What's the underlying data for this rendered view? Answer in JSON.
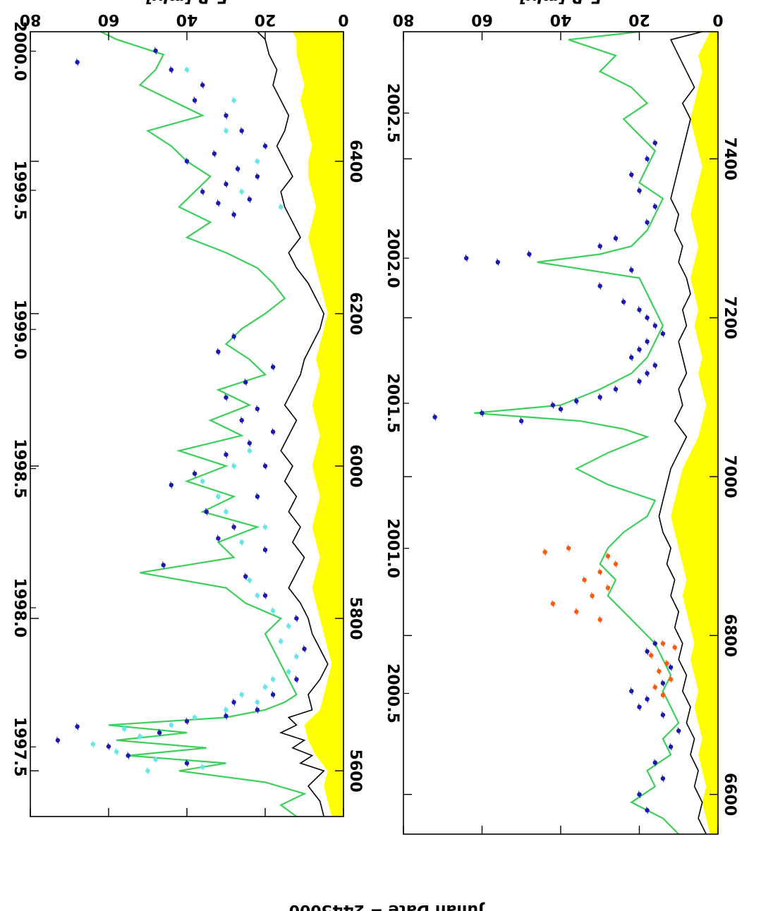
{
  "colors": {
    "fill": "#ffff00",
    "envelope": "#000000",
    "model": "#3ccf5a",
    "points_dark": "#1a1ab0",
    "points_light": "#66e6e6",
    "points_orange": "#ff5a14",
    "frame": "#000000"
  },
  "xlabel": "Julian Date − 2445000",
  "chart_data": [
    {
      "type": "scatter",
      "orientation": "rotated-180",
      "xlabel": "",
      "ylabel": "F_R [mJy]",
      "ylim": [
        0,
        80
      ],
      "yticks": [
        0,
        20,
        40,
        60,
        80
      ],
      "xlim": [
        5540,
        6570
      ],
      "xticks": [
        5600,
        5800,
        6000,
        6200,
        6400
      ],
      "years": [
        "1997.5",
        "1998.0",
        "1998.5",
        "1999.0",
        "1999.5",
        "2000.0"
      ],
      "grid": false,
      "series": [
        {
          "kind": "area",
          "x": [
            5540,
            5560,
            5580,
            5600,
            5620,
            5640,
            5660,
            5680,
            5700,
            5720,
            5740,
            5760,
            5780,
            5800,
            5820,
            5840,
            5860,
            5880,
            5900,
            5920,
            5940,
            5960,
            5980,
            6000,
            6020,
            6040,
            6060,
            6080,
            6100,
            6120,
            6140,
            6160,
            6180,
            6200,
            6220,
            6240,
            6260,
            6280,
            6300,
            6320,
            6340,
            6360,
            6380,
            6400,
            6420,
            6440,
            6460,
            6480,
            6500,
            6520,
            6540,
            6560,
            6570
          ],
          "values": [
            3,
            4,
            5,
            4,
            7,
            9,
            10,
            6,
            5,
            4,
            3,
            4,
            5,
            6,
            7,
            8,
            7,
            6,
            7,
            8,
            7,
            6,
            7,
            8,
            7,
            6,
            7,
            8,
            7,
            6,
            7,
            6,
            5,
            4,
            5,
            6,
            7,
            8,
            9,
            8,
            7,
            8,
            9,
            9,
            8,
            9,
            10,
            11,
            10,
            11,
            12,
            12,
            13
          ]
        },
        {
          "kind": "envelope",
          "x": [
            5540,
            5560,
            5580,
            5600,
            5610,
            5620,
            5630,
            5640,
            5650,
            5660,
            5670,
            5680,
            5700,
            5720,
            5740,
            5760,
            5780,
            5800,
            5820,
            5840,
            5860,
            5880,
            5900,
            5920,
            5940,
            5960,
            5980,
            6000,
            6020,
            6040,
            6060,
            6080,
            6100,
            6120,
            6140,
            6160,
            6180,
            6200,
            6220,
            6240,
            6260,
            6280,
            6300,
            6320,
            6340,
            6360,
            6380,
            6400,
            6420,
            6440,
            6460,
            6480,
            6500,
            6520,
            6540,
            6560,
            6570
          ],
          "values": [
            5,
            6,
            9,
            5,
            11,
            8,
            13,
            10,
            16,
            12,
            14,
            8,
            9,
            6,
            4,
            6,
            8,
            9,
            11,
            14,
            12,
            10,
            13,
            11,
            14,
            12,
            15,
            13,
            16,
            14,
            12,
            15,
            13,
            11,
            10,
            8,
            6,
            5,
            7,
            9,
            12,
            14,
            11,
            13,
            15,
            16,
            13,
            15,
            17,
            15,
            14,
            16,
            18,
            17,
            19,
            20,
            22
          ]
        },
        {
          "kind": "model",
          "x": [
            5540,
            5555,
            5570,
            5585,
            5600,
            5610,
            5620,
            5630,
            5640,
            5650,
            5660,
            5670,
            5680,
            5690,
            5700,
            5720,
            5740,
            5760,
            5780,
            5800,
            5820,
            5840,
            5860,
            5880,
            5900,
            5920,
            5940,
            5960,
            5980,
            6000,
            6020,
            6040,
            6060,
            6080,
            6100,
            6120,
            6140,
            6160,
            6180,
            6200,
            6220,
            6240,
            6260,
            6280,
            6300,
            6320,
            6340,
            6360,
            6380,
            6400,
            6420,
            6440,
            6460,
            6480,
            6500,
            6520,
            6540,
            6560,
            6570
          ],
          "values": [
            12,
            16,
            10,
            20,
            42,
            30,
            55,
            35,
            58,
            40,
            60,
            30,
            20,
            15,
            12,
            14,
            16,
            18,
            20,
            16,
            25,
            30,
            52,
            28,
            32,
            22,
            36,
            28,
            40,
            30,
            42,
            26,
            34,
            24,
            32,
            20,
            24,
            30,
            26,
            20,
            15,
            18,
            22,
            30,
            40,
            34,
            42,
            38,
            34,
            40,
            44,
            50,
            36,
            44,
            52,
            48,
            46,
            58,
            62
          ]
        },
        {
          "name": "",
          "kind": "points",
          "style": "dark",
          "x": [
            5610,
            5620,
            5632,
            5640,
            5650,
            5658,
            5665,
            5672,
            5680,
            5690,
            5700,
            5720,
            5760,
            5800,
            5830,
            5855,
            5870,
            5890,
            5905,
            5920,
            5940,
            5960,
            5975,
            5990,
            6000,
            6015,
            6030,
            6045,
            6060,
            6075,
            6090,
            6110,
            6130,
            6150,
            6170,
            6330,
            6345,
            6350,
            6360,
            6370,
            6380,
            6390,
            6400,
            6410,
            6420,
            6440,
            6460,
            6480,
            6500,
            6520,
            6530,
            6545
          ],
          "values": [
            40,
            55,
            60,
            73,
            47,
            68,
            40,
            30,
            22,
            28,
            18,
            12,
            10,
            12,
            20,
            25,
            46,
            20,
            32,
            28,
            35,
            22,
            44,
            38,
            20,
            30,
            24,
            18,
            26,
            22,
            30,
            25,
            18,
            32,
            28,
            28,
            32,
            24,
            36,
            30,
            22,
            27,
            40,
            33,
            20,
            26,
            30,
            38,
            36,
            44,
            68,
            48
          ]
        },
        {
          "name": "",
          "kind": "points",
          "style": "light",
          "x": [
            5600,
            5605,
            5615,
            5625,
            5635,
            5645,
            5655,
            5660,
            5670,
            5680,
            5690,
            5700,
            5710,
            5720,
            5730,
            5750,
            5770,
            5790,
            5810,
            5830,
            5850,
            5900,
            5920,
            5940,
            5960,
            5980,
            6000,
            6020,
            6340,
            6360,
            6400,
            6440,
            6480,
            6520
          ],
          "values": [
            50,
            36,
            48,
            58,
            64,
            52,
            56,
            44,
            38,
            30,
            22,
            26,
            20,
            18,
            14,
            12,
            16,
            14,
            18,
            22,
            24,
            26,
            20,
            30,
            32,
            36,
            28,
            24,
            16,
            26,
            22,
            30,
            28,
            40
          ]
        }
      ]
    },
    {
      "type": "scatter",
      "orientation": "rotated-180",
      "xlabel": "Julian Date − 2445000",
      "ylabel": "F_R [mJy]",
      "ylim": [
        0,
        80
      ],
      "yticks": [
        0,
        20,
        40,
        60,
        80
      ],
      "xlim": [
        6550,
        7560
      ],
      "xticks": [
        6600,
        6800,
        7000,
        7200,
        7400
      ],
      "years": [
        "2000.5",
        "2001.0",
        "2001.5",
        "2002.0",
        "2002.5"
      ],
      "grid": false,
      "series": [
        {
          "kind": "area",
          "x": [
            6550,
            6570,
            6590,
            6610,
            6630,
            6650,
            6670,
            6690,
            6710,
            6730,
            6750,
            6770,
            6790,
            6810,
            6830,
            6850,
            6870,
            6890,
            6910,
            6930,
            6950,
            6970,
            6990,
            7010,
            7030,
            7050,
            7070,
            7090,
            7110,
            7130,
            7150,
            7170,
            7190,
            7210,
            7230,
            7250,
            7270,
            7290,
            7310,
            7330,
            7350,
            7370,
            7390,
            7410,
            7430,
            7450,
            7470,
            7490,
            7510,
            7530,
            7550,
            7560
          ],
          "values": [
            2,
            3,
            4,
            3,
            4,
            5,
            4,
            5,
            6,
            5,
            6,
            7,
            6,
            7,
            8,
            9,
            8,
            9,
            10,
            11,
            12,
            11,
            10,
            9,
            7,
            5,
            4,
            3,
            4,
            5,
            4,
            5,
            6,
            5,
            6,
            7,
            6,
            5,
            6,
            7,
            6,
            5,
            4,
            5,
            6,
            7,
            6,
            5,
            4,
            5,
            3,
            2
          ]
        },
        {
          "kind": "envelope",
          "x": [
            6550,
            6570,
            6590,
            6610,
            6630,
            6650,
            6670,
            6690,
            6710,
            6730,
            6750,
            6770,
            6790,
            6810,
            6830,
            6850,
            6870,
            6890,
            6910,
            6930,
            6950,
            6970,
            6990,
            7010,
            7030,
            7050,
            7070,
            7090,
            7110,
            7130,
            7150,
            7170,
            7190,
            7210,
            7230,
            7250,
            7270,
            7290,
            7310,
            7330,
            7350,
            7370,
            7390,
            7410,
            7430,
            7450,
            7470,
            7490,
            7510,
            7530,
            7550,
            7560
          ],
          "values": [
            3,
            5,
            4,
            6,
            5,
            7,
            6,
            8,
            7,
            9,
            8,
            10,
            9,
            11,
            10,
            12,
            11,
            13,
            12,
            14,
            15,
            14,
            13,
            12,
            10,
            8,
            11,
            9,
            10,
            8,
            9,
            10,
            8,
            9,
            7,
            8,
            10,
            9,
            11,
            10,
            12,
            11,
            10,
            9,
            8,
            7,
            9,
            6,
            8,
            10,
            12,
            4
          ]
        },
        {
          "kind": "model",
          "x": [
            6550,
            6570,
            6590,
            6610,
            6630,
            6650,
            6670,
            6690,
            6710,
            6730,
            6750,
            6770,
            6790,
            6810,
            6830,
            6850,
            6870,
            6890,
            6910,
            6930,
            6950,
            6970,
            6990,
            7010,
            7030,
            7050,
            7060,
            7070,
            7080,
            7090,
            7110,
            7130,
            7150,
            7170,
            7190,
            7210,
            7230,
            7250,
            7270,
            7280,
            7290,
            7310,
            7330,
            7350,
            7370,
            7390,
            7410,
            7430,
            7450,
            7470,
            7490,
            7510,
            7530,
            7550,
            7560
          ],
          "values": [
            10,
            14,
            22,
            16,
            18,
            12,
            14,
            10,
            12,
            14,
            12,
            14,
            16,
            20,
            24,
            28,
            26,
            30,
            28,
            24,
            18,
            16,
            28,
            36,
            28,
            18,
            24,
            35,
            62,
            40,
            30,
            22,
            18,
            16,
            14,
            16,
            18,
            20,
            46,
            30,
            22,
            18,
            16,
            14,
            20,
            18,
            16,
            20,
            24,
            18,
            22,
            30,
            26,
            38,
            20
          ]
        },
        {
          "name": "",
          "kind": "points",
          "style": "dark",
          "x": [
            6580,
            6600,
            6620,
            6640,
            6660,
            6680,
            6700,
            6710,
            6720,
            6730,
            6740,
            6760,
            6780,
            6790,
            7070,
            7075,
            7080,
            7085,
            7090,
            7095,
            7100,
            7110,
            7120,
            7130,
            7140,
            7150,
            7160,
            7170,
            7180,
            7190,
            7200,
            7210,
            7220,
            7240,
            7260,
            7270,
            7275,
            7280,
            7290,
            7300,
            7320,
            7340,
            7360,
            7380,
            7400,
            7420
          ],
          "values": [
            18,
            20,
            14,
            16,
            12,
            10,
            14,
            20,
            18,
            22,
            14,
            12,
            18,
            16,
            50,
            72,
            60,
            40,
            42,
            36,
            30,
            26,
            20,
            18,
            16,
            22,
            20,
            18,
            14,
            16,
            18,
            20,
            24,
            30,
            22,
            56,
            64,
            48,
            30,
            26,
            18,
            16,
            20,
            22,
            18,
            16
          ]
        },
        {
          "name": "",
          "kind": "points",
          "style": "orange",
          "x": [
            6725,
            6735,
            6745,
            6755,
            6765,
            6775,
            6785,
            6790,
            6820,
            6830,
            6840,
            6850,
            6860,
            6870,
            6880,
            6890,
            6900,
            6905,
            6910
          ],
          "values": [
            14,
            16,
            12,
            15,
            13,
            17,
            11,
            14,
            30,
            36,
            42,
            32,
            28,
            34,
            30,
            26,
            28,
            44,
            38
          ]
        }
      ]
    }
  ]
}
